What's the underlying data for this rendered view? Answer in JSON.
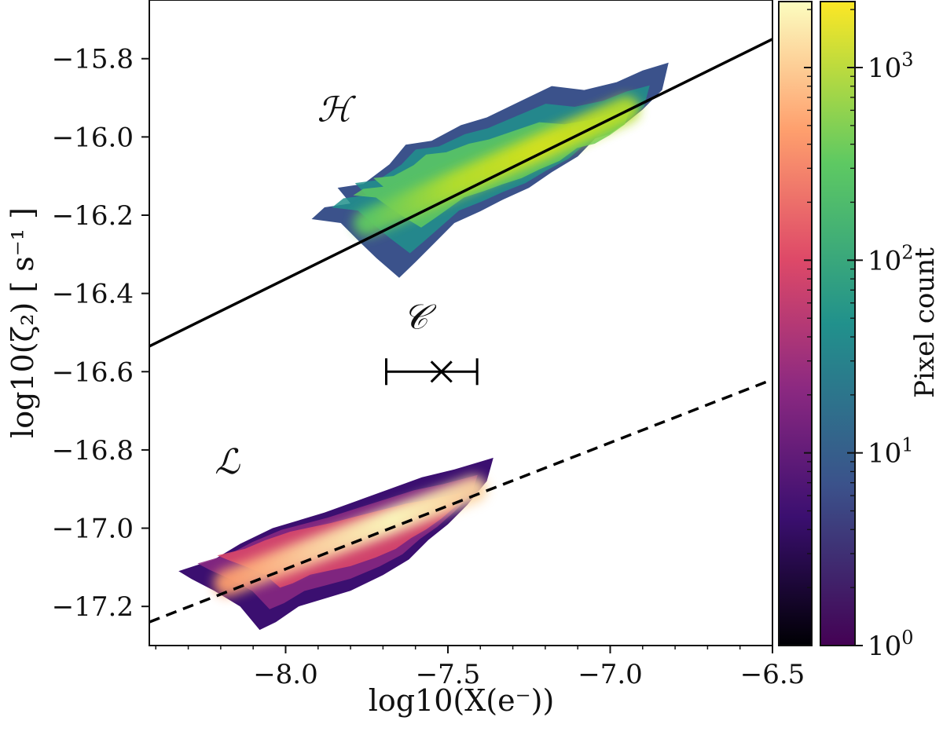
{
  "chart_data": {
    "type": "heatmap",
    "title": "",
    "xlabel": "log10(X(e⁻))",
    "ylabel": "log10(ζ₂) [ s⁻¹ ]",
    "xlim": [
      -8.42,
      -6.5
    ],
    "ylim": [
      -17.3,
      -15.65
    ],
    "xticks": [
      {
        "value": -8.0,
        "label": "−8.0"
      },
      {
        "value": -7.5,
        "label": "−7.5"
      },
      {
        "value": -7.0,
        "label": "−7.0"
      },
      {
        "value": -6.5,
        "label": "−6.5"
      }
    ],
    "yticks": [
      {
        "value": -15.8,
        "label": "−15.8"
      },
      {
        "value": -16.0,
        "label": "−16.0"
      },
      {
        "value": -16.2,
        "label": "−16.2"
      },
      {
        "value": -16.4,
        "label": "−16.4"
      },
      {
        "value": -16.6,
        "label": "−16.6"
      },
      {
        "value": -16.8,
        "label": "−16.8"
      },
      {
        "value": -17.0,
        "label": "−17.0"
      },
      {
        "value": -17.2,
        "label": "−17.2"
      }
    ],
    "regions": [
      {
        "name": "H",
        "label": "ℋ",
        "colormap": "viridis",
        "label_pos": {
          "x": -7.85,
          "y": -15.96
        },
        "outline": [
          [
            -7.83,
            -16.22
          ],
          [
            -7.92,
            -16.21
          ],
          [
            -7.88,
            -16.18
          ],
          [
            -7.8,
            -16.17
          ],
          [
            -7.84,
            -16.13
          ],
          [
            -7.76,
            -16.12
          ],
          [
            -7.68,
            -16.07
          ],
          [
            -7.63,
            -16.02
          ],
          [
            -7.55,
            -16.01
          ],
          [
            -7.46,
            -15.97
          ],
          [
            -7.38,
            -15.95
          ],
          [
            -7.28,
            -15.91
          ],
          [
            -7.18,
            -15.87
          ],
          [
            -7.08,
            -15.88
          ],
          [
            -6.98,
            -15.86
          ],
          [
            -6.9,
            -15.83
          ],
          [
            -6.82,
            -15.81
          ],
          [
            -6.84,
            -15.88
          ],
          [
            -6.9,
            -15.93
          ],
          [
            -6.96,
            -15.97
          ],
          [
            -7.03,
            -15.99
          ],
          [
            -7.1,
            -16.05
          ],
          [
            -7.18,
            -16.09
          ],
          [
            -7.25,
            -16.13
          ],
          [
            -7.33,
            -16.16
          ],
          [
            -7.4,
            -16.19
          ],
          [
            -7.48,
            -16.22
          ],
          [
            -7.54,
            -16.27
          ],
          [
            -7.6,
            -16.32
          ],
          [
            -7.65,
            -16.36
          ],
          [
            -7.72,
            -16.31
          ],
          [
            -7.77,
            -16.27
          ]
        ],
        "core_start": {
          "x": -7.75,
          "y": -16.22
        },
        "core_end": {
          "x": -6.95,
          "y": -15.93
        }
      },
      {
        "name": "L",
        "label": "ℒ",
        "colormap": "magma",
        "label_pos": {
          "x": -8.18,
          "y": -16.86
        },
        "outline": [
          [
            -8.33,
            -17.11
          ],
          [
            -8.22,
            -17.08
          ],
          [
            -8.14,
            -17.04
          ],
          [
            -8.04,
            -17.0
          ],
          [
            -7.96,
            -16.98
          ],
          [
            -7.88,
            -16.96
          ],
          [
            -7.78,
            -16.93
          ],
          [
            -7.68,
            -16.9
          ],
          [
            -7.58,
            -16.87
          ],
          [
            -7.48,
            -16.85
          ],
          [
            -7.4,
            -16.83
          ],
          [
            -7.36,
            -16.82
          ],
          [
            -7.38,
            -16.88
          ],
          [
            -7.44,
            -16.94
          ],
          [
            -7.5,
            -16.99
          ],
          [
            -7.56,
            -17.03
          ],
          [
            -7.62,
            -17.08
          ],
          [
            -7.7,
            -17.12
          ],
          [
            -7.8,
            -17.16
          ],
          [
            -7.88,
            -17.18
          ],
          [
            -7.96,
            -17.2
          ],
          [
            -8.03,
            -17.24
          ],
          [
            -8.08,
            -17.26
          ],
          [
            -8.14,
            -17.2
          ],
          [
            -8.22,
            -17.16
          ],
          [
            -8.29,
            -17.13
          ]
        ],
        "core_start": {
          "x": -8.18,
          "y": -17.14
        },
        "core_end": {
          "x": -7.42,
          "y": -16.9
        }
      }
    ],
    "lines": [
      {
        "name": "solid-fit",
        "style": "solid",
        "x": [
          -8.42,
          -6.5
        ],
        "y": [
          -16.535,
          -15.75
        ]
      },
      {
        "name": "dashed-fit",
        "style": "dashed",
        "x": [
          -8.42,
          -6.5
        ],
        "y": [
          -17.24,
          -16.62
        ]
      }
    ],
    "point": {
      "label": "𝒞",
      "x": -7.52,
      "y": -16.6,
      "xerr_low": -7.69,
      "xerr_high": -7.41,
      "label_pos": {
        "x": -7.6,
        "y": -16.49
      }
    },
    "colorbars": [
      {
        "name": "magma",
        "colors": [
          "#000004",
          "#3b0f70",
          "#8c2981",
          "#de4968",
          "#fe9f6d",
          "#fcfdbf"
        ]
      },
      {
        "name": "viridis",
        "colors": [
          "#440154",
          "#3b528b",
          "#21918c",
          "#5ec962",
          "#fde725"
        ]
      }
    ],
    "colorbar_label": "Pixel count",
    "colorbar_scale": "log",
    "colorbar_range": [
      1,
      2200
    ],
    "colorbar_ticks": [
      {
        "value": 1,
        "base": "10",
        "exp": "0"
      },
      {
        "value": 10,
        "base": "10",
        "exp": "1"
      },
      {
        "value": 100,
        "base": "10",
        "exp": "2"
      },
      {
        "value": 1000,
        "base": "10",
        "exp": "3"
      }
    ]
  }
}
